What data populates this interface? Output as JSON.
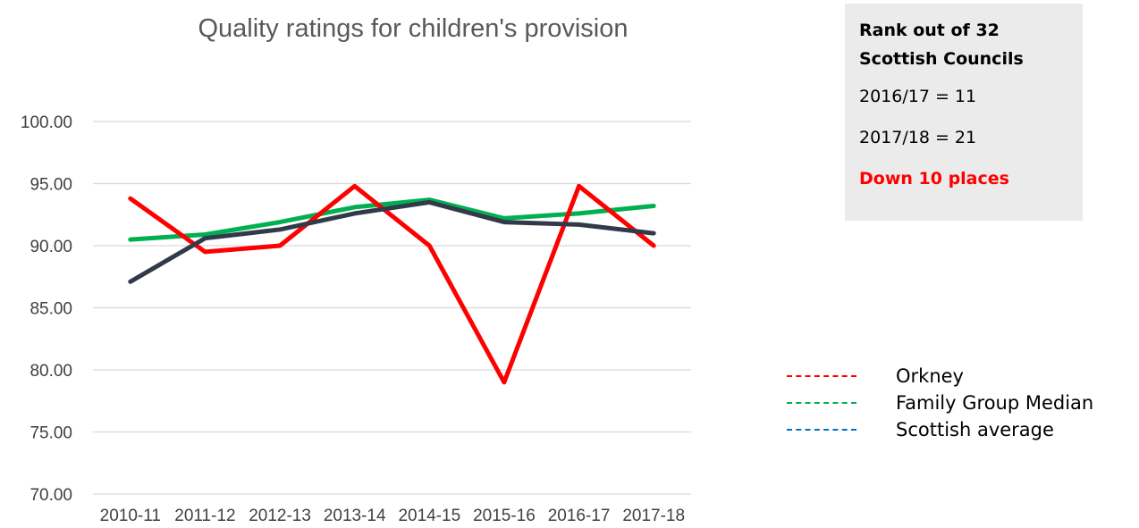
{
  "chart_data": {
    "type": "line",
    "title": "Quality ratings for children's provision",
    "categories": [
      "2010-11",
      "2011-12",
      "2012-13",
      "2013-14",
      "2014-15",
      "2015-16",
      "2016-17",
      "2017-18"
    ],
    "ylim": [
      70,
      100
    ],
    "yticks": [
      "70.00",
      "75.00",
      "80.00",
      "85.00",
      "90.00",
      "95.00",
      "100.00"
    ],
    "grid": true,
    "legend_position": "bottom-right",
    "series": [
      {
        "name": "Orkney",
        "color": "#ff0000",
        "values": [
          93.8,
          89.5,
          90.0,
          94.8,
          90.0,
          79.0,
          94.8,
          90.0
        ]
      },
      {
        "name": "Family Group Median",
        "color": "#00b050",
        "values": [
          90.5,
          90.9,
          91.9,
          93.1,
          93.7,
          92.2,
          92.6,
          93.2
        ]
      },
      {
        "name": "Scottish average",
        "color": "#0070c0",
        "line_color": "#323a4a",
        "values": [
          87.1,
          90.6,
          91.3,
          92.6,
          93.5,
          91.9,
          91.7,
          91.0
        ]
      }
    ]
  },
  "rank_box": {
    "heading_line1": "Rank out of 32",
    "heading_line2": "Scottish Councils",
    "line1": "2016/17 = 11",
    "line2": "2017/18 = 21",
    "change": "Down 10 places",
    "change_color": "#ff0000"
  }
}
